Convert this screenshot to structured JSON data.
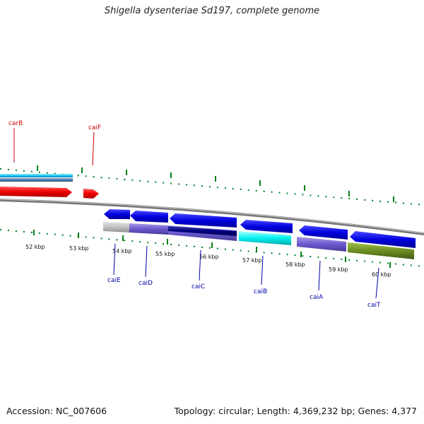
{
  "title": "Shigella dysenteriae Sd197, complete genome",
  "footer": {
    "accession": "Accession: NC_007606",
    "summary": "Topology: circular; Length: 4,369,232 bp; Genes: 4,377"
  },
  "colors": {
    "forward_label": "#cc0000",
    "reverse_label": "#0000aa",
    "tick": "#00801a",
    "backbone": "#777777"
  },
  "kbp_labels": [
    "52 kbp",
    "53 kbp",
    "54 kbp",
    "55 kbp",
    "56 kbp",
    "57 kbp",
    "58 kbp",
    "59 kbp",
    "60 kbp"
  ],
  "genes_forward": [
    "carB",
    "caiF"
  ],
  "genes_reverse": [
    "caiE",
    "caiD",
    "caiC",
    "caiB",
    "caiA",
    "caiT"
  ]
}
